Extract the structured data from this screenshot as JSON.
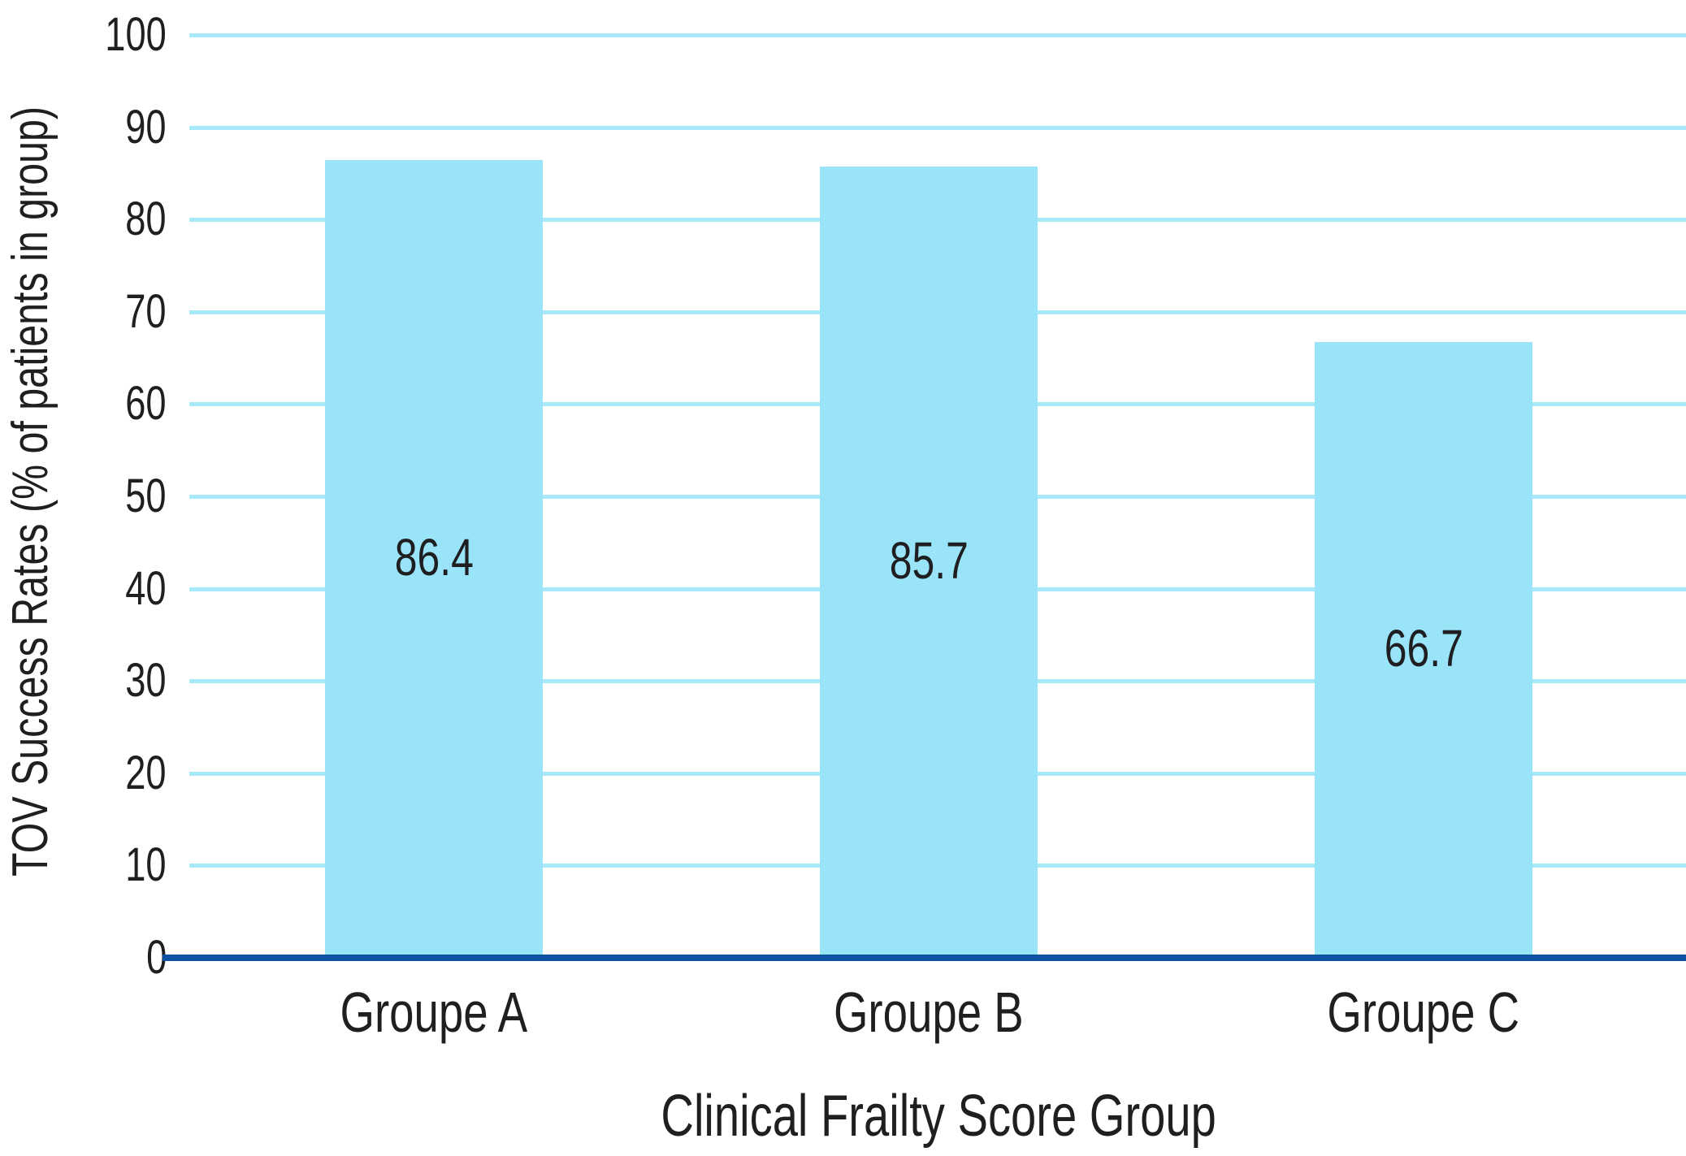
{
  "chart_data": {
    "type": "bar",
    "title": "",
    "xlabel": "Clinical Frailty Score Group",
    "ylabel": "TOV Success Rates (% of patients in group)",
    "categories": [
      "Groupe A",
      "Groupe B",
      "Groupe C"
    ],
    "values": [
      86.4,
      85.7,
      66.7
    ],
    "bar_labels": [
      "86.4",
      "85.7",
      "66.7"
    ],
    "ylim": [
      0,
      100
    ],
    "yticks": [
      100,
      90,
      80,
      70,
      60,
      50,
      40,
      30,
      20,
      10,
      0
    ],
    "grid": "horizontal-light",
    "legend": "none",
    "colors": {
      "bar_fill": "#99E4F8",
      "gridline": "#A7E8F9",
      "axis_line": "#0B52A2",
      "text": "#1F1F21",
      "background": "#FFFFFF"
    }
  }
}
